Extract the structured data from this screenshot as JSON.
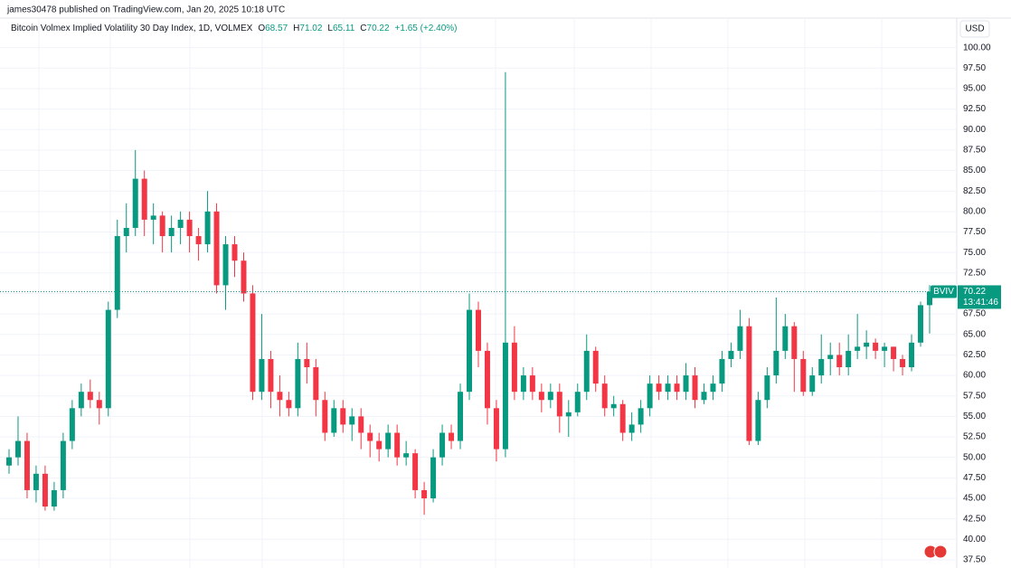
{
  "header": {
    "publisher": "james30478 published on TradingView.com, Jan 20, 2025 10:18 UTC"
  },
  "chart_data": {
    "type": "candlestick",
    "title": "Bitcoin Volmex Implied Volatility 30 Day Index, 1D, VOLMEX",
    "ohlc_legend": [
      {
        "label": "O",
        "value": "68.57"
      },
      {
        "label": "H",
        "value": "71.02"
      },
      {
        "label": "L",
        "value": "65.11"
      },
      {
        "label": "C",
        "value": "70.22"
      }
    ],
    "change": "+1.65 (+2.40%)",
    "currency": "USD",
    "symbol": "BVIV",
    "last_price": "70.22",
    "countdown": "13:41:46",
    "up_color": "#089981",
    "down_color": "#f23645",
    "grid": true,
    "ylim": [
      36.5,
      103.6
    ],
    "yticks": [
      {
        "value": 37.5,
        "label": "37.50"
      },
      {
        "value": 40,
        "label": "40.00"
      },
      {
        "value": 42.5,
        "label": "42.50"
      },
      {
        "value": 45,
        "label": "45.00"
      },
      {
        "value": 47.5,
        "label": "47.50"
      },
      {
        "value": 50,
        "label": "50.00"
      },
      {
        "value": 52.5,
        "label": "52.50"
      },
      {
        "value": 55,
        "label": "55.00"
      },
      {
        "value": 57.5,
        "label": "57.50"
      },
      {
        "value": 60,
        "label": "60.00"
      },
      {
        "value": 62.5,
        "label": "62.50"
      },
      {
        "value": 65,
        "label": "65.00"
      },
      {
        "value": 67.5,
        "label": "67.50"
      },
      {
        "value": 70,
        "label": "70.00"
      },
      {
        "value": 72.5,
        "label": "72.50"
      },
      {
        "value": 75,
        "label": "75.00"
      },
      {
        "value": 77.5,
        "label": "77.50"
      },
      {
        "value": 80,
        "label": "80.00"
      },
      {
        "value": 82.5,
        "label": "82.50"
      },
      {
        "value": 85,
        "label": "85.00"
      },
      {
        "value": 87.5,
        "label": "87.50"
      },
      {
        "value": 90,
        "label": "90.00"
      },
      {
        "value": 92.5,
        "label": "92.50"
      },
      {
        "value": 95,
        "label": "95.00"
      },
      {
        "value": 97.5,
        "label": "97.50"
      },
      {
        "value": 100,
        "label": "100.00"
      }
    ],
    "open": [
      49,
      50,
      52,
      46,
      48,
      44,
      46,
      52,
      56,
      58,
      57,
      56,
      68,
      77,
      78,
      84,
      79,
      79.5,
      77,
      78,
      79,
      77,
      76,
      80,
      71,
      76,
      74,
      70,
      58,
      62,
      58,
      57,
      56,
      62,
      61,
      57,
      53,
      56,
      54,
      55,
      53,
      52,
      51,
      53,
      50,
      50.5,
      46,
      45,
      50,
      53,
      52,
      58,
      68,
      63,
      56,
      51,
      64,
      58,
      60,
      58,
      57,
      58,
      55,
      55.5,
      58,
      63,
      59,
      56,
      56.5,
      53,
      54,
      56,
      59,
      58,
      59,
      58,
      60,
      57,
      58,
      59,
      62,
      63,
      66,
      52,
      57,
      60,
      63,
      66,
      62,
      58,
      60,
      62,
      62.5,
      61,
      63,
      63.5,
      64,
      63,
      63.5,
      62,
      61,
      64,
      68.57
    ],
    "high": [
      51,
      55,
      53,
      49,
      49,
      47,
      53,
      57,
      59,
      59.5,
      58,
      69,
      79,
      81,
      87.5,
      85,
      81,
      80,
      79.5,
      80,
      80,
      78,
      82.5,
      81,
      77,
      77,
      75,
      71,
      67.5,
      63,
      60,
      58,
      64,
      64,
      62,
      58,
      57,
      57,
      56,
      56,
      54,
      53,
      54,
      54,
      52,
      51,
      47,
      51,
      54,
      54,
      59,
      70,
      69,
      64,
      57,
      97,
      66,
      61,
      61,
      59,
      59,
      59,
      57,
      59,
      65,
      63.5,
      60,
      57.5,
      57,
      55.5,
      57,
      60,
      60,
      60,
      60,
      61.5,
      61,
      59,
      60,
      63,
      64,
      68,
      67,
      58,
      61,
      69.5,
      67.5,
      66.5,
      63,
      61,
      65,
      64,
      64,
      65,
      67.5,
      65.5,
      64.5,
      64,
      63.5,
      62.5,
      65,
      69,
      71.02
    ],
    "low": [
      48,
      49,
      45,
      44.5,
      43.5,
      43.5,
      45,
      51,
      55,
      56,
      54,
      55,
      67,
      75,
      77,
      77,
      76,
      75,
      75,
      76,
      75,
      74,
      75,
      70,
      68,
      72,
      69,
      57,
      57,
      56,
      55,
      55,
      55,
      59,
      55,
      52,
      52.5,
      53,
      52,
      51,
      50,
      49.5,
      50,
      49,
      49,
      45,
      43,
      44.5,
      49,
      51,
      51,
      57,
      61,
      54,
      49.5,
      50,
      57,
      57,
      57,
      55.5,
      56,
      53,
      52.5,
      55,
      57,
      58,
      55,
      55,
      52,
      52,
      53,
      55,
      57,
      57,
      57,
      57,
      56,
      56.5,
      57,
      58,
      61,
      62,
      51.5,
      51.5,
      56,
      59,
      62,
      58,
      57.5,
      57.5,
      59,
      60,
      60,
      60,
      62,
      62,
      62,
      61,
      60.5,
      60,
      60.5,
      63.5,
      65.11
    ],
    "close": [
      50,
      52,
      46,
      48,
      44,
      46,
      52,
      56,
      58,
      57,
      56,
      68,
      77,
      78,
      84,
      79,
      79.5,
      77,
      78,
      79,
      77,
      76,
      80,
      71,
      76,
      74,
      70,
      58,
      62,
      58,
      57,
      56,
      62,
      61,
      57,
      53,
      56,
      54,
      55,
      53,
      52,
      51,
      53,
      50,
      50.5,
      46,
      45,
      50,
      53,
      52,
      58,
      68,
      63,
      56,
      51,
      64,
      58,
      60,
      58,
      57,
      58,
      55,
      55.5,
      58,
      63,
      59,
      56,
      56.5,
      53,
      54,
      56,
      59,
      58,
      59,
      58,
      60,
      57,
      58,
      59,
      62,
      63,
      66,
      52,
      57,
      60,
      63,
      66,
      62,
      58,
      60,
      62,
      62.5,
      61,
      63,
      63.5,
      64,
      63,
      63.5,
      62,
      61,
      64,
      68.57,
      70.22
    ]
  }
}
